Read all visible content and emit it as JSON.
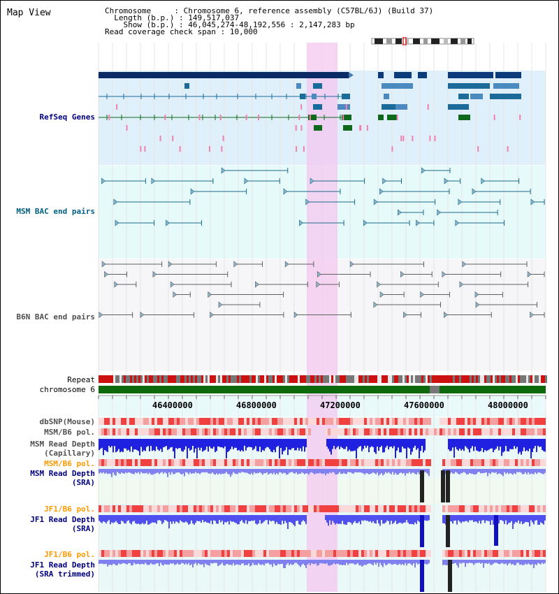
{
  "view_title": "Map View",
  "info": {
    "chromosome_label": "Chromosome",
    "chromosome_value": "Chromosome 6, reference assembly (C57BL/6J) (Build 37)",
    "length_label": "Length (b.p.)",
    "length_value": "149,517,037",
    "show_label": "Show (b.p.)",
    "show_value": "46,045,274-48,192,556 : 2,147,283 bp",
    "coverage_label": "Read coverage check span",
    "coverage_value": "10,000"
  },
  "tracks": {
    "refseq": "RefSeq Genes",
    "msm_bac": "MSM BAC end pairs",
    "b6n_bac": "B6N BAC end pairs",
    "repeat": "Repeat",
    "chromosome": "chromosome 6",
    "dbsnp": "dbSNP(Mouse)",
    "msm_b6_pol_1": "MSM/B6 pol.",
    "msm_depth_cap_1": "MSM Read Depth",
    "msm_depth_cap_2": "(Capillary)",
    "msm_b6_pol_2": "MSM/B6 pol.",
    "msm_depth_sra_1": "MSM Read Depth",
    "msm_depth_sra_2": "(SRA)",
    "jf1_b6_pol_1": "JF1/B6 pol.",
    "jf1_depth_sra_1": "JF1 Read Depth",
    "jf1_depth_sra_2": "(SRA)",
    "jf1_b6_pol_2": "JF1/B6 pol.",
    "jf1_depth_trim_1": "JF1 Read Depth",
    "jf1_depth_trim_2": "(SRA trimmed)"
  },
  "axis_ticks": [
    "46400000",
    "46800000",
    "47200000",
    "47600000",
    "48000000"
  ],
  "colors": {
    "refseq_label": "#000080",
    "msm_bac_label": "#006080",
    "b6n_bac_label": "#505050",
    "pol_orange": "#ff9900",
    "depth_blue": "#0000a0",
    "highlight": "#f4c8f0"
  }
}
